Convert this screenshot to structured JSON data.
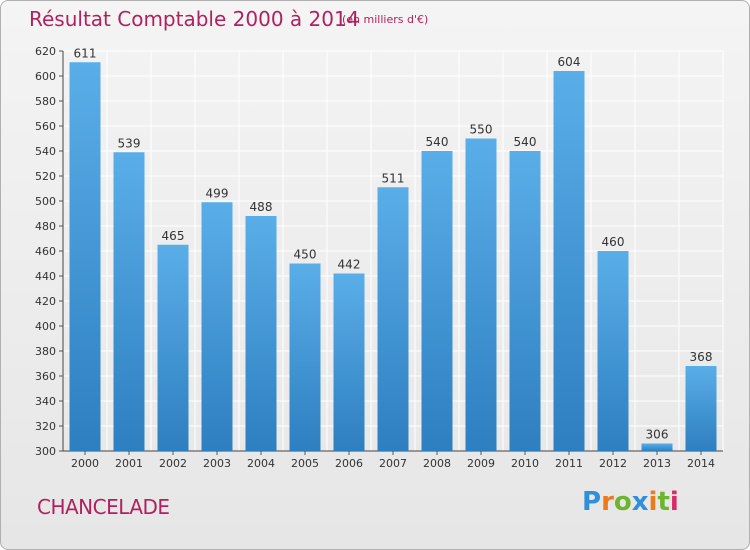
{
  "header": {
    "title": "Résultat Comptable 2000 à 2014",
    "unit": "(en milliers d'€)"
  },
  "footer": {
    "place": "CHANCELADE",
    "logo": "Proxiti"
  },
  "colors": {
    "accent": "#b0225f",
    "bar_top": "#5aaee8",
    "bar_bottom": "#2d7fc0",
    "grid": "#ffffff"
  },
  "chart_data": {
    "type": "bar",
    "title": "Résultat Comptable 2000 à 2014",
    "subtitle": "(en milliers d'€)",
    "xlabel": "",
    "ylabel": "",
    "categories": [
      "2000",
      "2001",
      "2002",
      "2003",
      "2004",
      "2005",
      "2006",
      "2007",
      "2008",
      "2009",
      "2010",
      "2011",
      "2012",
      "2013",
      "2014"
    ],
    "values": [
      611,
      539,
      465,
      499,
      488,
      450,
      442,
      511,
      540,
      550,
      540,
      604,
      460,
      306,
      368
    ],
    "ylim": [
      300,
      620
    ],
    "yticks": [
      300,
      320,
      340,
      360,
      380,
      400,
      420,
      440,
      460,
      480,
      500,
      520,
      540,
      560,
      580,
      600,
      620
    ],
    "grid": true,
    "data_labels": true,
    "legend": "none"
  }
}
